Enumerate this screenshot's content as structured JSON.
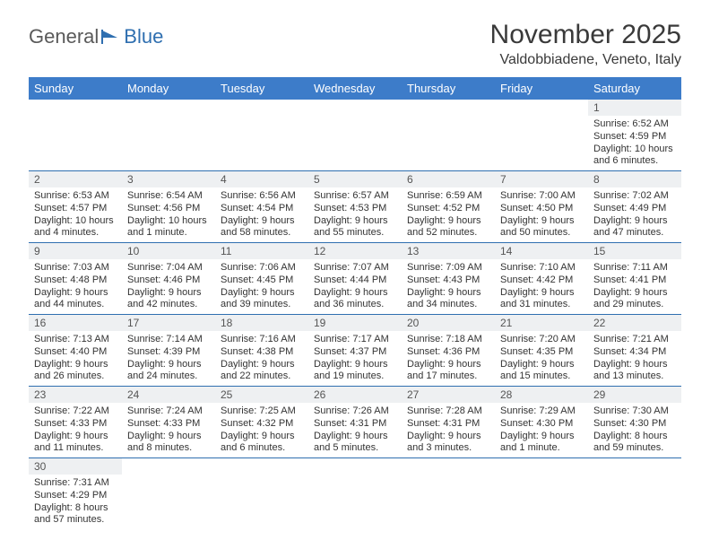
{
  "brand": {
    "part1": "General",
    "part2": "Blue"
  },
  "title": "November 2025",
  "location": "Valdobbiadene, Veneto, Italy",
  "colors": {
    "header_bg": "#3d7cc9",
    "header_text": "#ffffff",
    "row_border": "#2f6fb0",
    "daynum_bg": "#eef0f2",
    "text": "#333333",
    "brand_gray": "#5a5a5a",
    "brand_blue": "#2f6fb0"
  },
  "weekdays": [
    "Sunday",
    "Monday",
    "Tuesday",
    "Wednesday",
    "Thursday",
    "Friday",
    "Saturday"
  ],
  "layout": {
    "first_weekday_index": 6,
    "days_in_month": 30,
    "cell_fontsize_pt": 8,
    "header_fontsize_pt": 10
  },
  "days": [
    {
      "n": 1,
      "sunrise": "6:52 AM",
      "sunset": "4:59 PM",
      "daylight": "10 hours and 6 minutes."
    },
    {
      "n": 2,
      "sunrise": "6:53 AM",
      "sunset": "4:57 PM",
      "daylight": "10 hours and 4 minutes."
    },
    {
      "n": 3,
      "sunrise": "6:54 AM",
      "sunset": "4:56 PM",
      "daylight": "10 hours and 1 minute."
    },
    {
      "n": 4,
      "sunrise": "6:56 AM",
      "sunset": "4:54 PM",
      "daylight": "9 hours and 58 minutes."
    },
    {
      "n": 5,
      "sunrise": "6:57 AM",
      "sunset": "4:53 PM",
      "daylight": "9 hours and 55 minutes."
    },
    {
      "n": 6,
      "sunrise": "6:59 AM",
      "sunset": "4:52 PM",
      "daylight": "9 hours and 52 minutes."
    },
    {
      "n": 7,
      "sunrise": "7:00 AM",
      "sunset": "4:50 PM",
      "daylight": "9 hours and 50 minutes."
    },
    {
      "n": 8,
      "sunrise": "7:02 AM",
      "sunset": "4:49 PM",
      "daylight": "9 hours and 47 minutes."
    },
    {
      "n": 9,
      "sunrise": "7:03 AM",
      "sunset": "4:48 PM",
      "daylight": "9 hours and 44 minutes."
    },
    {
      "n": 10,
      "sunrise": "7:04 AM",
      "sunset": "4:46 PM",
      "daylight": "9 hours and 42 minutes."
    },
    {
      "n": 11,
      "sunrise": "7:06 AM",
      "sunset": "4:45 PM",
      "daylight": "9 hours and 39 minutes."
    },
    {
      "n": 12,
      "sunrise": "7:07 AM",
      "sunset": "4:44 PM",
      "daylight": "9 hours and 36 minutes."
    },
    {
      "n": 13,
      "sunrise": "7:09 AM",
      "sunset": "4:43 PM",
      "daylight": "9 hours and 34 minutes."
    },
    {
      "n": 14,
      "sunrise": "7:10 AM",
      "sunset": "4:42 PM",
      "daylight": "9 hours and 31 minutes."
    },
    {
      "n": 15,
      "sunrise": "7:11 AM",
      "sunset": "4:41 PM",
      "daylight": "9 hours and 29 minutes."
    },
    {
      "n": 16,
      "sunrise": "7:13 AM",
      "sunset": "4:40 PM",
      "daylight": "9 hours and 26 minutes."
    },
    {
      "n": 17,
      "sunrise": "7:14 AM",
      "sunset": "4:39 PM",
      "daylight": "9 hours and 24 minutes."
    },
    {
      "n": 18,
      "sunrise": "7:16 AM",
      "sunset": "4:38 PM",
      "daylight": "9 hours and 22 minutes."
    },
    {
      "n": 19,
      "sunrise": "7:17 AM",
      "sunset": "4:37 PM",
      "daylight": "9 hours and 19 minutes."
    },
    {
      "n": 20,
      "sunrise": "7:18 AM",
      "sunset": "4:36 PM",
      "daylight": "9 hours and 17 minutes."
    },
    {
      "n": 21,
      "sunrise": "7:20 AM",
      "sunset": "4:35 PM",
      "daylight": "9 hours and 15 minutes."
    },
    {
      "n": 22,
      "sunrise": "7:21 AM",
      "sunset": "4:34 PM",
      "daylight": "9 hours and 13 minutes."
    },
    {
      "n": 23,
      "sunrise": "7:22 AM",
      "sunset": "4:33 PM",
      "daylight": "9 hours and 11 minutes."
    },
    {
      "n": 24,
      "sunrise": "7:24 AM",
      "sunset": "4:33 PM",
      "daylight": "9 hours and 8 minutes."
    },
    {
      "n": 25,
      "sunrise": "7:25 AM",
      "sunset": "4:32 PM",
      "daylight": "9 hours and 6 minutes."
    },
    {
      "n": 26,
      "sunrise": "7:26 AM",
      "sunset": "4:31 PM",
      "daylight": "9 hours and 5 minutes."
    },
    {
      "n": 27,
      "sunrise": "7:28 AM",
      "sunset": "4:31 PM",
      "daylight": "9 hours and 3 minutes."
    },
    {
      "n": 28,
      "sunrise": "7:29 AM",
      "sunset": "4:30 PM",
      "daylight": "9 hours and 1 minute."
    },
    {
      "n": 29,
      "sunrise": "7:30 AM",
      "sunset": "4:30 PM",
      "daylight": "8 hours and 59 minutes."
    },
    {
      "n": 30,
      "sunrise": "7:31 AM",
      "sunset": "4:29 PM",
      "daylight": "8 hours and 57 minutes."
    }
  ],
  "labels": {
    "sunrise": "Sunrise:",
    "sunset": "Sunset:",
    "daylight": "Daylight:"
  }
}
